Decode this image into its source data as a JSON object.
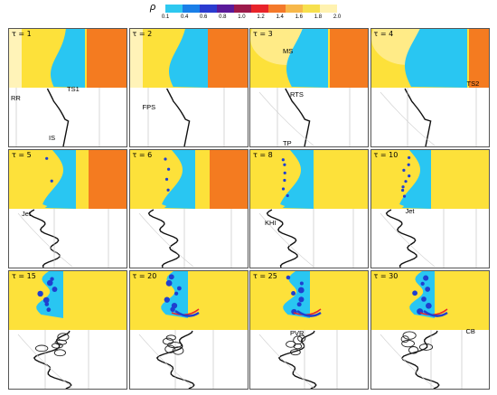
{
  "colorbar": {
    "symbol": "ρ",
    "ticks": [
      "0.1",
      "0.4",
      "0.6",
      "0.8",
      "1.0",
      "1.2",
      "1.4",
      "1.6",
      "1.8",
      "2.0"
    ],
    "colors": [
      "#2ec8f0",
      "#1a7fe8",
      "#2a3bd0",
      "#5a1a9a",
      "#9c1a4a",
      "#e8232a",
      "#f4792a",
      "#f7b84a",
      "#f7e04e",
      "#fff2b0"
    ]
  },
  "panels": [
    {
      "tau": "τ = 1",
      "labels": [
        "TS1",
        "RR",
        "IS"
      ]
    },
    {
      "tau": "τ = 2",
      "labels": [
        "FPS"
      ]
    },
    {
      "tau": "τ = 3",
      "labels": [
        "MS",
        "RTS",
        "TP"
      ]
    },
    {
      "tau": "τ = 4",
      "labels": [
        "TS2"
      ]
    },
    {
      "tau": "τ = 5",
      "labels": [
        "Jet"
      ]
    },
    {
      "tau": "τ = 6",
      "labels": []
    },
    {
      "tau": "τ = 8",
      "labels": [
        "KHI"
      ]
    },
    {
      "tau": "τ = 10",
      "labels": [
        "Jet"
      ]
    },
    {
      "tau": "τ = 15",
      "labels": []
    },
    {
      "tau": "τ = 20",
      "labels": []
    },
    {
      "tau": "τ = 25",
      "labels": [
        "PVR"
      ]
    },
    {
      "tau": "τ = 30",
      "labels": [
        "CB"
      ]
    }
  ],
  "fluid_colors": {
    "heavy_gas": "#f47b20",
    "air": "#fde13a",
    "bubble": "#29c6f2",
    "vortex": "#1f3fd0",
    "interface": "#e8232a"
  }
}
